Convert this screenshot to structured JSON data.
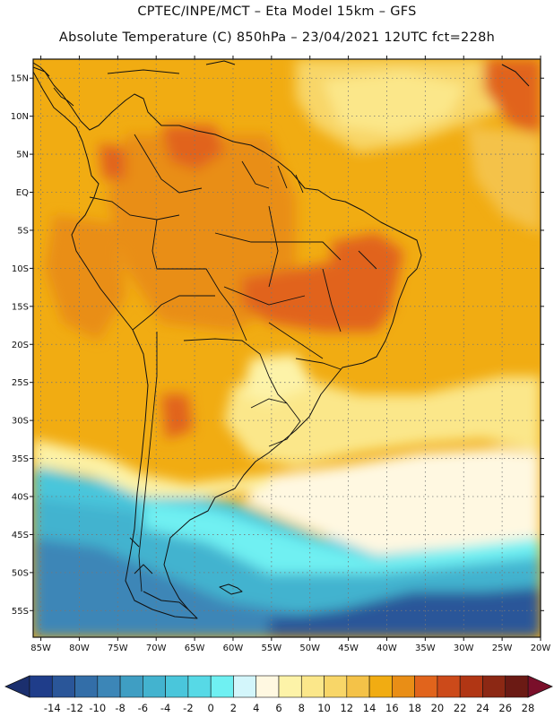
{
  "title_line1": "CPTEC/INPE/MCT –  Eta Model 15km – GFS",
  "title_line2": "Absolute Temperature (C) 850hPa – 23/04/2021 12UTC fct=228h",
  "lat_labels": [
    "15N",
    "10N",
    "5N",
    "EQ",
    "5S",
    "10S",
    "15S",
    "20S",
    "25S",
    "30S",
    "35S",
    "40S",
    "45S",
    "50S",
    "55S"
  ],
  "lat_values": [
    15,
    10,
    5,
    0,
    -5,
    -10,
    -15,
    -20,
    -25,
    -30,
    -35,
    -40,
    -45,
    -50,
    -55
  ],
  "lon_labels": [
    "85W",
    "80W",
    "75W",
    "70W",
    "65W",
    "60W",
    "55W",
    "50W",
    "45W",
    "40W",
    "35W",
    "30W",
    "25W",
    "20W"
  ],
  "lon_values": [
    -85,
    -80,
    -75,
    -70,
    -65,
    -60,
    -55,
    -50,
    -45,
    -40,
    -35,
    -30,
    -25,
    -20
  ],
  "domain": {
    "lon_min": -86,
    "lon_max": -20,
    "lat_min": -58.5,
    "lat_max": 17.5
  },
  "colorbar": {
    "labels": [
      "-14",
      "-12",
      "-10",
      "-8",
      "-6",
      "-4",
      "-2",
      "0",
      "2",
      "4",
      "6",
      "8",
      "10",
      "12",
      "14",
      "16",
      "18",
      "20",
      "22",
      "24",
      "26",
      "28"
    ],
    "colors": [
      "#1f3d8a",
      "#2a5699",
      "#336ea8",
      "#3c86b7",
      "#3f9ec3",
      "#43b3cf",
      "#4ac6db",
      "#57d9e6",
      "#6ff0f2",
      "#d3f6fb",
      "#fff8e1",
      "#fdf3a8",
      "#fbe78a",
      "#f8d668",
      "#f4c248",
      "#f1ac12",
      "#e98e16",
      "#e1641c",
      "#cc4a1a",
      "#b13614",
      "#8c2814",
      "#6b1a14"
    ],
    "under_color": "#1b2f6e",
    "over_color": "#7a0f2a"
  }
}
